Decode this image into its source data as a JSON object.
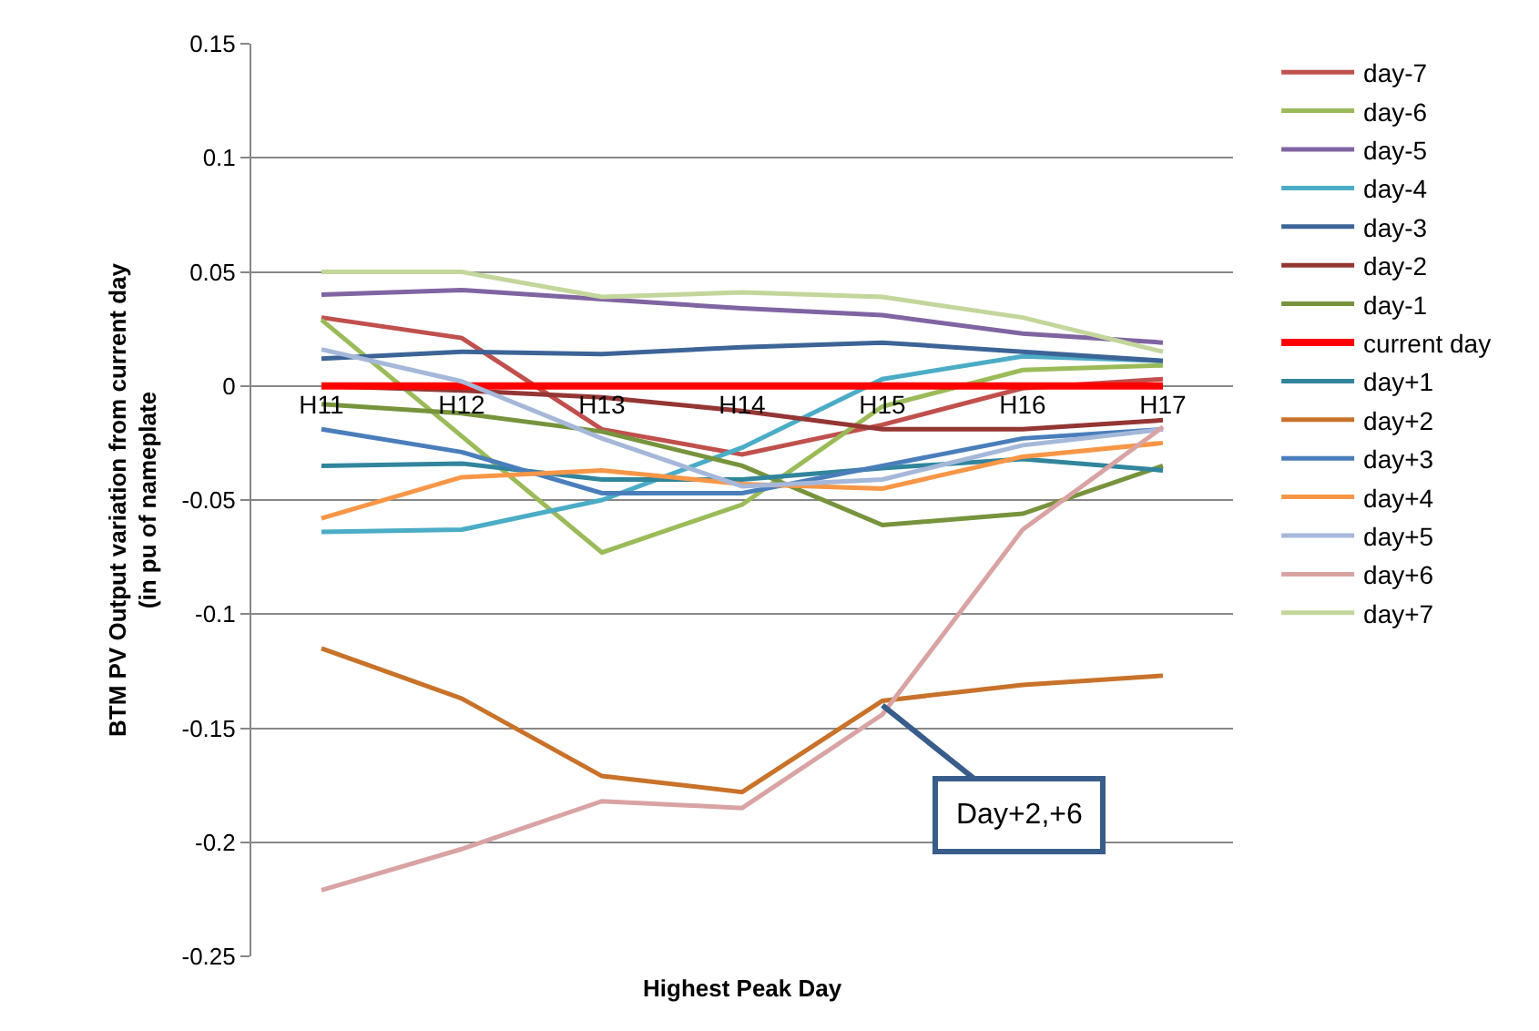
{
  "chart_data": {
    "type": "line",
    "xlabel": "Highest Peak Day",
    "ylabel": "BTM PV Output variation from current day\n(in pu of nameplate",
    "categories": [
      "H11",
      "H12",
      "H13",
      "H14",
      "H15",
      "H16",
      "H17"
    ],
    "ylim": [
      -0.25,
      0.15
    ],
    "yticks": [
      -0.25,
      -0.2,
      -0.15,
      -0.1,
      -0.05,
      0,
      0.05,
      0.1,
      0.15
    ],
    "grid": "y",
    "legend": "right",
    "marker": "none",
    "line_style": "solid",
    "annotations": [
      {
        "text": "Day+2,+6",
        "x": "H15",
        "y": -0.14
      }
    ],
    "series": [
      {
        "name": "day-7",
        "color": "#c0504d",
        "values": [
          0.03,
          0.021,
          -0.019,
          -0.03,
          -0.017,
          -0.001,
          0.003
        ]
      },
      {
        "name": "day-6",
        "color": "#9bbb59",
        "values": [
          0.029,
          -0.022,
          -0.073,
          -0.052,
          -0.009,
          0.007,
          0.009
        ]
      },
      {
        "name": "day-5",
        "color": "#8064a2",
        "values": [
          0.04,
          0.042,
          0.038,
          0.034,
          0.031,
          0.023,
          0.019
        ]
      },
      {
        "name": "day-4",
        "color": "#4bacc6",
        "values": [
          -0.064,
          -0.063,
          -0.05,
          -0.027,
          0.003,
          0.013,
          0.011
        ]
      },
      {
        "name": "day-3",
        "color": "#3c6497",
        "values": [
          0.012,
          0.015,
          0.014,
          0.017,
          0.019,
          0.015,
          0.011
        ]
      },
      {
        "name": "day-2",
        "color": "#943634",
        "values": [
          0.0,
          -0.002,
          -0.005,
          -0.011,
          -0.019,
          -0.019,
          -0.015
        ]
      },
      {
        "name": "day-1",
        "color": "#77933c",
        "values": [
          -0.008,
          -0.012,
          -0.02,
          -0.035,
          -0.061,
          -0.056,
          -0.035
        ]
      },
      {
        "name": "current day",
        "color": "#ff0000",
        "values": [
          0,
          0,
          0,
          0,
          0,
          0,
          0
        ]
      },
      {
        "name": "day+1",
        "color": "#31859c",
        "values": [
          -0.035,
          -0.034,
          -0.041,
          -0.041,
          -0.036,
          -0.032,
          -0.037
        ]
      },
      {
        "name": "day+2",
        "color": "#c8722a",
        "values": [
          -0.115,
          -0.137,
          -0.171,
          -0.178,
          -0.138,
          -0.131,
          -0.127
        ]
      },
      {
        "name": "day+3",
        "color": "#4a7ebb",
        "values": [
          -0.019,
          -0.029,
          -0.047,
          -0.047,
          -0.035,
          -0.023,
          -0.019
        ]
      },
      {
        "name": "day+4",
        "color": "#f79646",
        "values": [
          -0.058,
          -0.04,
          -0.037,
          -0.043,
          -0.045,
          -0.031,
          -0.025
        ]
      },
      {
        "name": "day+5",
        "color": "#a5b8d9",
        "values": [
          0.016,
          0.002,
          -0.023,
          -0.044,
          -0.041,
          -0.026,
          -0.019
        ]
      },
      {
        "name": "day+6",
        "color": "#d9a3a3",
        "values": [
          -0.221,
          -0.203,
          -0.182,
          -0.185,
          -0.144,
          -0.063,
          -0.018
        ]
      },
      {
        "name": "day+7",
        "color": "#c3d69b",
        "values": [
          0.05,
          0.05,
          0.039,
          0.041,
          0.039,
          0.03,
          0.015
        ]
      }
    ]
  }
}
